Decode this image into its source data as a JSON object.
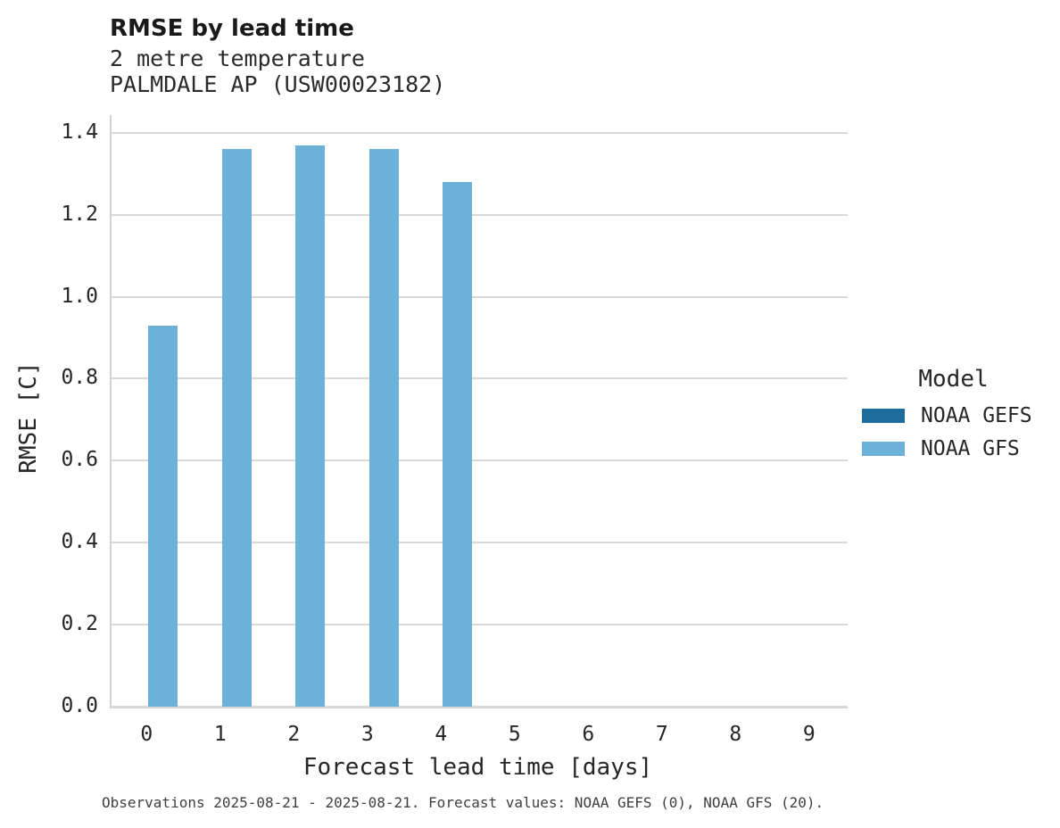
{
  "header": {
    "title": "RMSE by lead time",
    "subtitle_line1": "2 metre temperature",
    "subtitle_line2": "PALMDALE AP (USW00023182)"
  },
  "footer": {
    "note": "Observations 2025-08-21 - 2025-08-21. Forecast values: NOAA GEFS (0), NOAA GFS (20)."
  },
  "legend": {
    "title": "Model",
    "entries": [
      {
        "label": "NOAA GEFS",
        "color": "#1e6e9d"
      },
      {
        "label": "NOAA GFS",
        "color": "#6cb1d8"
      }
    ]
  },
  "colors": {
    "gridline": "#d9d9d9",
    "axis_spine": "#d2d2d2",
    "text": "#262626"
  },
  "chart_data": {
    "type": "bar",
    "title": "RMSE by lead time",
    "subtitle": "2 metre temperature — PALMDALE AP (USW00023182)",
    "xlabel": "Forecast lead time [days]",
    "ylabel": "RMSE [C]",
    "categories": [
      "0",
      "1",
      "2",
      "3",
      "4",
      "5",
      "6",
      "7",
      "8",
      "9"
    ],
    "series": [
      {
        "name": "NOAA GEFS",
        "color": "#1e6e9d",
        "values": [
          null,
          null,
          null,
          null,
          null,
          null,
          null,
          null,
          null,
          null
        ]
      },
      {
        "name": "NOAA GFS",
        "color": "#6cb1d8",
        "values": [
          0.93,
          1.36,
          1.37,
          1.36,
          1.28,
          null,
          null,
          null,
          null,
          null
        ]
      }
    ],
    "yticks": [
      0.0,
      0.2,
      0.4,
      0.6,
      0.8,
      1.0,
      1.2,
      1.4
    ],
    "ylim": [
      0,
      1.443
    ],
    "grid": "horizontal",
    "legend_position": "right",
    "legend_title": "Model"
  }
}
